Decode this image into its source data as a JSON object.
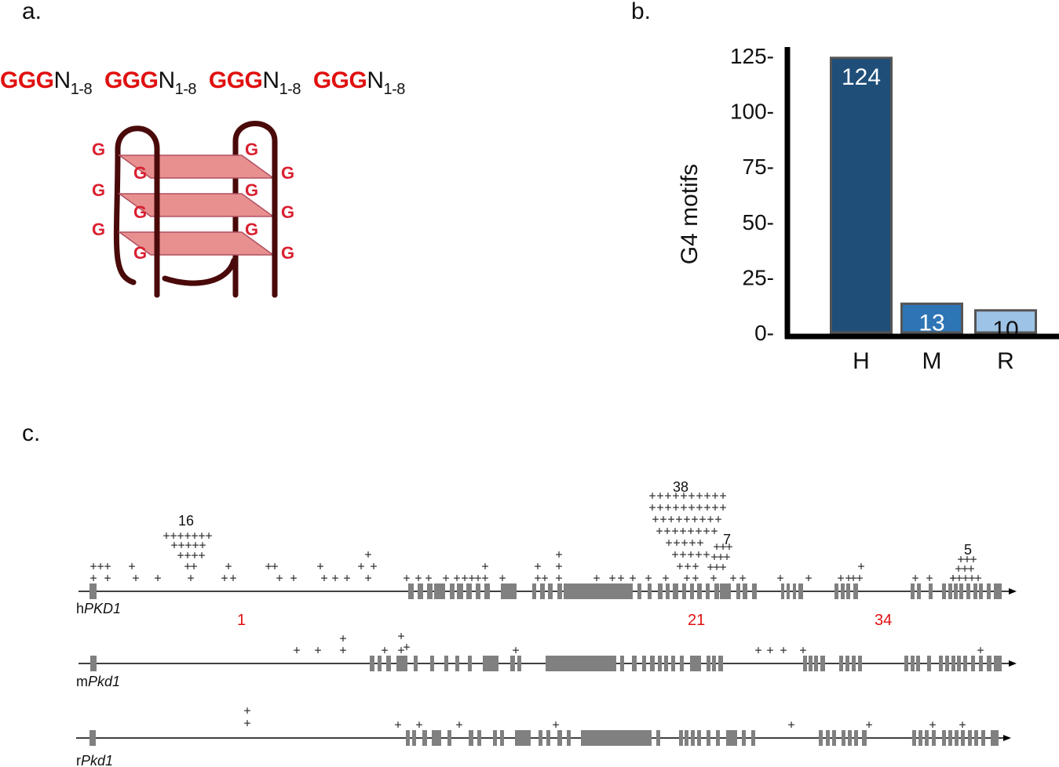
{
  "panel_a": {
    "label": "a.",
    "motif_units": [
      {
        "g": "GGG",
        "n": "N",
        "sub": "1-8"
      },
      {
        "g": "GGG",
        "n": "N",
        "sub": "1-8"
      },
      {
        "g": "GGG",
        "n": "N",
        "sub": "1-8"
      },
      {
        "g": "GGG",
        "n": "N",
        "sub": "1-8"
      }
    ],
    "quadruplex_letter": "G",
    "colors": {
      "guanine": "#d92030",
      "tetrad": "#e89090",
      "strand": "#4a0a0a"
    }
  },
  "panel_b": {
    "label": "b.",
    "chart_data": {
      "type": "bar",
      "categories": [
        "H",
        "M",
        "R"
      ],
      "values": [
        124,
        13,
        10
      ],
      "value_labels": [
        "124",
        "13",
        "10"
      ],
      "ylabel": "G4 motifs",
      "xlabel": "",
      "ylim": [
        0,
        125
      ],
      "yticks": [
        0,
        25,
        50,
        75,
        100,
        125
      ],
      "ytick_labels": [
        "0-",
        "25-",
        "50-",
        "75-",
        "100-",
        "125-"
      ],
      "colors": [
        "#1f4e79",
        "#2e75b6",
        "#9dc3e6"
      ],
      "grid": false,
      "legend": "none"
    }
  },
  "panel_c": {
    "label": "c.",
    "genes": [
      {
        "prefix": "h",
        "name": "PKD1"
      },
      {
        "prefix": "m",
        "name": "Pkd1"
      },
      {
        "prefix": "r",
        "name": "Pkd1"
      }
    ],
    "exon_labels": [
      "1",
      "21",
      "34"
    ],
    "cluster_counts": [
      "16",
      "38",
      "7",
      "5"
    ],
    "plus_symbol": "+",
    "colors": {
      "exon": "#808080",
      "line": "#000000",
      "exon_label": "#e01010"
    }
  }
}
